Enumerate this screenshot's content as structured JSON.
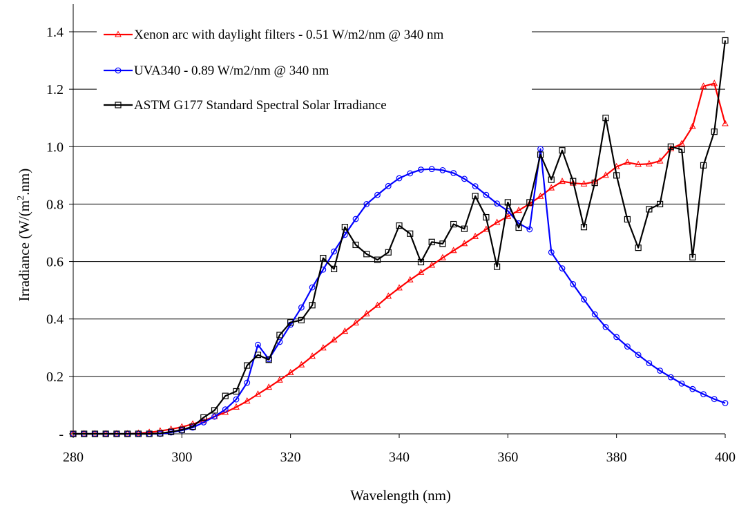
{
  "chart_data": {
    "type": "line",
    "title": "",
    "xlabel": "Wavelength (nm)",
    "ylabel_main": "Irradiance (W/(m",
    "ylabel_sup": "2",
    "ylabel_end": ".nm)",
    "xlim": [
      280,
      400
    ],
    "ylim": [
      0,
      1.4
    ],
    "x_ticks": [
      280,
      300,
      320,
      340,
      360,
      380,
      400
    ],
    "x_tick_labels": [
      "280",
      "300",
      "320",
      "340",
      "360",
      "380",
      "400"
    ],
    "y_ticks": [
      0,
      0.2,
      0.4,
      0.6,
      0.8,
      1.0,
      1.2,
      1.4
    ],
    "y_tick_labels": [
      "-",
      "0.2",
      "0.4",
      "0.6",
      "0.8",
      "1.0",
      "1.2",
      "1.4"
    ],
    "grid": "horizontal",
    "legend_position": "top-left",
    "series": [
      {
        "name": "Xenon arc with daylight filters - 0.51 W/m2/nm @ 340 nm",
        "color": "#ff0000",
        "marker": "triangle",
        "x": [
          280,
          282,
          284,
          286,
          288,
          290,
          292,
          294,
          296,
          298,
          300,
          302,
          304,
          306,
          308,
          310,
          312,
          314,
          316,
          318,
          320,
          322,
          324,
          326,
          328,
          330,
          332,
          334,
          336,
          338,
          340,
          342,
          344,
          346,
          348,
          350,
          352,
          354,
          356,
          358,
          360,
          362,
          364,
          366,
          368,
          370,
          372,
          374,
          376,
          378,
          380,
          382,
          384,
          386,
          388,
          390,
          392,
          394,
          396,
          398,
          400
        ],
        "values": [
          0,
          0,
          0,
          0,
          0,
          0,
          0.002,
          0.005,
          0.01,
          0.016,
          0.024,
          0.034,
          0.046,
          0.06,
          0.075,
          0.093,
          0.114,
          0.138,
          0.162,
          0.187,
          0.213,
          0.24,
          0.27,
          0.299,
          0.327,
          0.357,
          0.386,
          0.418,
          0.447,
          0.479,
          0.508,
          0.536,
          0.562,
          0.587,
          0.613,
          0.638,
          0.662,
          0.687,
          0.712,
          0.736,
          0.757,
          0.778,
          0.801,
          0.827,
          0.856,
          0.879,
          0.873,
          0.87,
          0.878,
          0.9,
          0.93,
          0.945,
          0.938,
          0.94,
          0.95,
          0.993,
          1.01,
          1.07,
          1.21,
          1.22,
          1.08
        ]
      },
      {
        "name": "UVA340 - 0.89 W/m2/nm @ 340 nm",
        "color": "#0000ff",
        "marker": "circle",
        "x": [
          280,
          282,
          284,
          286,
          288,
          290,
          292,
          294,
          296,
          298,
          300,
          302,
          304,
          306,
          308,
          310,
          312,
          314,
          316,
          318,
          320,
          322,
          324,
          326,
          328,
          330,
          332,
          334,
          336,
          338,
          340,
          342,
          344,
          346,
          348,
          350,
          352,
          354,
          356,
          358,
          360,
          362,
          364,
          366,
          368,
          370,
          372,
          374,
          376,
          378,
          380,
          382,
          384,
          386,
          388,
          390,
          392,
          394,
          396,
          398,
          400
        ],
        "values": [
          0,
          0,
          0,
          0,
          0,
          0,
          0,
          0,
          0,
          0.005,
          0.012,
          0.022,
          0.04,
          0.06,
          0.085,
          0.12,
          0.178,
          0.31,
          0.26,
          0.32,
          0.38,
          0.44,
          0.51,
          0.572,
          0.635,
          0.693,
          0.748,
          0.8,
          0.832,
          0.863,
          0.89,
          0.907,
          0.92,
          0.922,
          0.918,
          0.908,
          0.888,
          0.862,
          0.832,
          0.802,
          0.776,
          0.733,
          0.712,
          0.992,
          0.632,
          0.576,
          0.521,
          0.468,
          0.416,
          0.372,
          0.337,
          0.304,
          0.275,
          0.246,
          0.22,
          0.197,
          0.175,
          0.156,
          0.138,
          0.121,
          0.107
        ]
      },
      {
        "name": "ASTM G177 Standard Spectral Solar Irradiance",
        "color": "#000000",
        "marker": "square",
        "x": [
          280,
          282,
          284,
          286,
          288,
          290,
          292,
          294,
          296,
          298,
          300,
          302,
          304,
          306,
          308,
          310,
          312,
          314,
          316,
          318,
          320,
          322,
          324,
          326,
          328,
          330,
          332,
          334,
          336,
          338,
          340,
          342,
          344,
          346,
          348,
          350,
          352,
          354,
          356,
          358,
          360,
          362,
          364,
          366,
          368,
          370,
          372,
          374,
          376,
          378,
          380,
          382,
          384,
          386,
          388,
          390,
          392,
          394,
          396,
          398,
          400
        ],
        "values": [
          0,
          0,
          0,
          0,
          0,
          0,
          0,
          0,
          0.002,
          0.007,
          0.014,
          0.025,
          0.057,
          0.082,
          0.132,
          0.148,
          0.238,
          0.275,
          0.258,
          0.344,
          0.388,
          0.396,
          0.448,
          0.612,
          0.574,
          0.72,
          0.658,
          0.626,
          0.606,
          0.632,
          0.725,
          0.697,
          0.598,
          0.668,
          0.662,
          0.73,
          0.714,
          0.828,
          0.754,
          0.582,
          0.806,
          0.718,
          0.806,
          0.972,
          0.885,
          0.987,
          0.88,
          0.72,
          0.874,
          1.1,
          0.9,
          0.747,
          0.648,
          0.782,
          0.8,
          1.0,
          0.99,
          0.615,
          0.935,
          1.052,
          1.37
        ]
      }
    ]
  }
}
